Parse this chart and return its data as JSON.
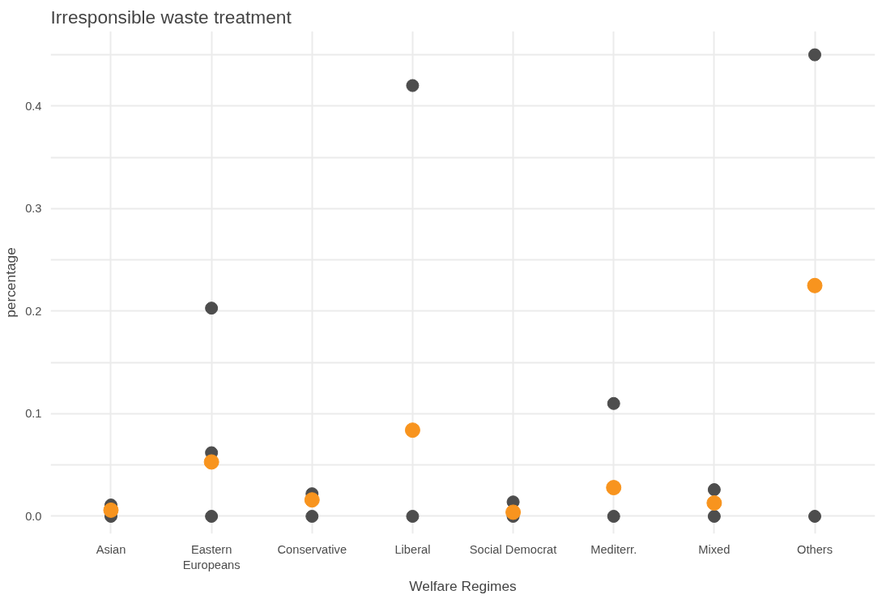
{
  "chart_data": {
    "type": "scatter",
    "title": "Irresponsible waste treatment",
    "xlabel": "Welfare Regimes",
    "ylabel": "percentage",
    "categories": [
      "Asian",
      "Eastern\nEuropeans",
      "Conservative",
      "Liberal",
      "Social Democrat",
      "Mediterr.",
      "Mixed",
      "Others"
    ],
    "series": [
      {
        "color": "#4d4d4d",
        "x": [
          "Asian",
          "Asian",
          "Eastern\nEuropeans",
          "Eastern\nEuropeans",
          "Eastern\nEuropeans",
          "Conservative",
          "Conservative",
          "Liberal",
          "Liberal",
          "Social Democrat",
          "Social Democrat",
          "Mediterr.",
          "Mediterr.",
          "Mixed",
          "Mixed",
          "Others",
          "Others"
        ],
        "values": [
          0.011,
          0,
          0.203,
          0.062,
          0,
          0.022,
          0,
          0.42,
          0,
          0.014,
          0,
          0.11,
          0,
          0.026,
          0,
          0.45,
          0
        ]
      },
      {
        "color": "#f8941e",
        "values": [
          0.006,
          0.053,
          0.016,
          0.084,
          0.004,
          0.028,
          0.013,
          0.225
        ]
      }
    ],
    "ylim": [
      -0.017,
      0.473
    ],
    "yticks": [
      {
        "value": 0,
        "label": "0.0"
      },
      {
        "value": 0.05,
        "label": null
      },
      0.1,
      {
        "value": 0.15,
        "label": null
      },
      0.2,
      {
        "value": 0.25,
        "label": null
      },
      0.3,
      {
        "value": 0.35,
        "label": null
      },
      0.4,
      {
        "value": 0.45,
        "label": null
      }
    ],
    "grid": true,
    "marker": "circle"
  }
}
